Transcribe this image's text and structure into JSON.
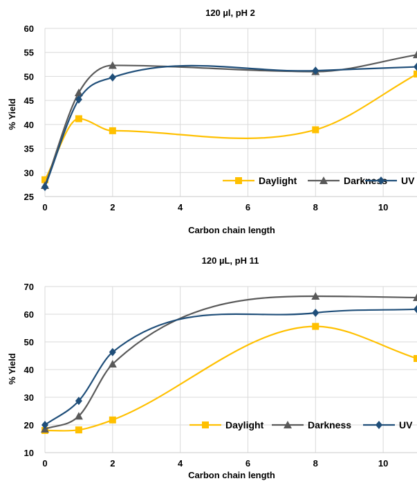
{
  "chart_data": [
    {
      "type": "line",
      "title": "120 µl, pH 2",
      "xlabel": "Carbon chain length",
      "ylabel": "% Yield",
      "xlim": [
        0,
        11
      ],
      "ylim": [
        25,
        60
      ],
      "x_ticks": [
        0,
        2,
        4,
        6,
        8,
        10
      ],
      "y_ticks": [
        25,
        30,
        35,
        40,
        45,
        50,
        55,
        60
      ],
      "grid": true,
      "legend_position": "bottom-right",
      "series": [
        {
          "name": "Daylight",
          "color": "#FFC000",
          "marker": "square",
          "x": [
            0,
            1,
            2,
            8,
            11
          ],
          "y": [
            28.5,
            41.2,
            38.7,
            38.9,
            50.5
          ]
        },
        {
          "name": "Darkness",
          "color": "#595959",
          "marker": "triangle",
          "x": [
            0,
            1,
            2,
            8,
            11
          ],
          "y": [
            27.3,
            46.6,
            52.3,
            51.0,
            54.5
          ]
        },
        {
          "name": "UV",
          "color": "#1F4E79",
          "marker": "diamond",
          "x": [
            0,
            1,
            2,
            8,
            11
          ],
          "y": [
            27.0,
            45.2,
            49.8,
            51.2,
            52.0
          ]
        }
      ]
    },
    {
      "type": "line",
      "title": "120 µL, pH 11",
      "xlabel": "Carbon chain length",
      "ylabel": "% Yield",
      "xlim": [
        0,
        11
      ],
      "ylim": [
        10,
        70
      ],
      "x_ticks": [
        0,
        2,
        4,
        6,
        8,
        10
      ],
      "y_ticks": [
        10,
        20,
        30,
        40,
        50,
        60,
        70
      ],
      "grid": true,
      "legend_position": "bottom-right",
      "series": [
        {
          "name": "Daylight",
          "color": "#FFC000",
          "marker": "square",
          "x": [
            0,
            1,
            2,
            8,
            11
          ],
          "y": [
            18.0,
            18.2,
            21.8,
            55.6,
            44.0
          ]
        },
        {
          "name": "Darkness",
          "color": "#595959",
          "marker": "triangle",
          "x": [
            0,
            1,
            2,
            8,
            11
          ],
          "y": [
            18.5,
            23.2,
            42.0,
            66.5,
            66.0
          ]
        },
        {
          "name": "UV",
          "color": "#1F4E79",
          "marker": "diamond",
          "x": [
            0,
            1,
            2,
            8,
            11
          ],
          "y": [
            20.0,
            28.7,
            46.3,
            60.5,
            61.8
          ]
        }
      ]
    }
  ]
}
